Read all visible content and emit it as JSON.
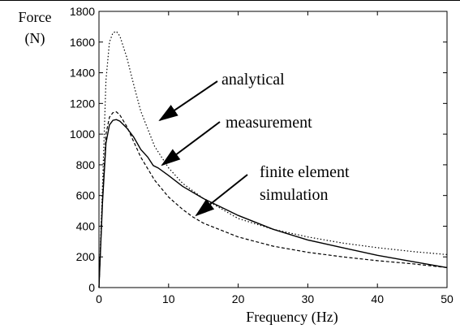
{
  "chart_data": {
    "type": "line",
    "xlabel": "Frequency (Hz)",
    "ylabel_lines": [
      "Force",
      "(N)"
    ],
    "xlim": [
      0,
      50
    ],
    "ylim": [
      0,
      1800
    ],
    "xticks": [
      0,
      10,
      20,
      30,
      40,
      50
    ],
    "yticks": [
      0,
      200,
      400,
      600,
      800,
      1000,
      1200,
      1400,
      1600,
      1800
    ],
    "grid": false,
    "series": [
      {
        "name": "analytical",
        "style": "dotted",
        "color": "#000000",
        "x": [
          0,
          0.5,
          1,
          1.5,
          2,
          2.5,
          3,
          4,
          5,
          6,
          8,
          10,
          12,
          15,
          20,
          25,
          30,
          35,
          40,
          45,
          50
        ],
        "y": [
          0,
          650,
          1350,
          1600,
          1660,
          1670,
          1640,
          1500,
          1320,
          1150,
          920,
          780,
          680,
          580,
          450,
          380,
          330,
          290,
          260,
          235,
          215
        ]
      },
      {
        "name": "measurement",
        "style": "solid",
        "color": "#000000",
        "x": [
          0,
          0.5,
          1,
          1.5,
          2,
          2.5,
          3,
          4,
          5,
          6,
          7,
          7.8,
          8.5,
          10,
          12,
          15,
          20,
          25,
          30,
          35,
          40,
          45,
          50
        ],
        "y": [
          0,
          550,
          940,
          1060,
          1090,
          1095,
          1085,
          1040,
          980,
          900,
          850,
          795,
          780,
          730,
          660,
          580,
          470,
          380,
          310,
          260,
          210,
          170,
          130
        ]
      },
      {
        "name": "finite element simulation",
        "style": "dashed",
        "color": "#000000",
        "x": [
          0,
          0.5,
          1,
          1.5,
          2,
          2.5,
          3,
          4,
          5,
          6,
          8,
          10,
          12,
          13.5,
          15,
          20,
          25,
          30,
          35,
          40,
          45,
          50
        ],
        "y": [
          0,
          580,
          1000,
          1110,
          1140,
          1145,
          1125,
          1050,
          950,
          850,
          700,
          590,
          510,
          460,
          420,
          330,
          270,
          230,
          200,
          175,
          155,
          130
        ]
      }
    ],
    "annotations": [
      {
        "lines": [
          "analytical"
        ],
        "points_to": {
          "x": 8.8,
          "y": 1140
        }
      },
      {
        "lines": [
          "measurement"
        ],
        "points_to": {
          "x": 9.5,
          "y": 800
        }
      },
      {
        "lines": [
          "finite element",
          "simulation"
        ],
        "points_to": {
          "x": 13.8,
          "y": 470
        }
      }
    ]
  }
}
